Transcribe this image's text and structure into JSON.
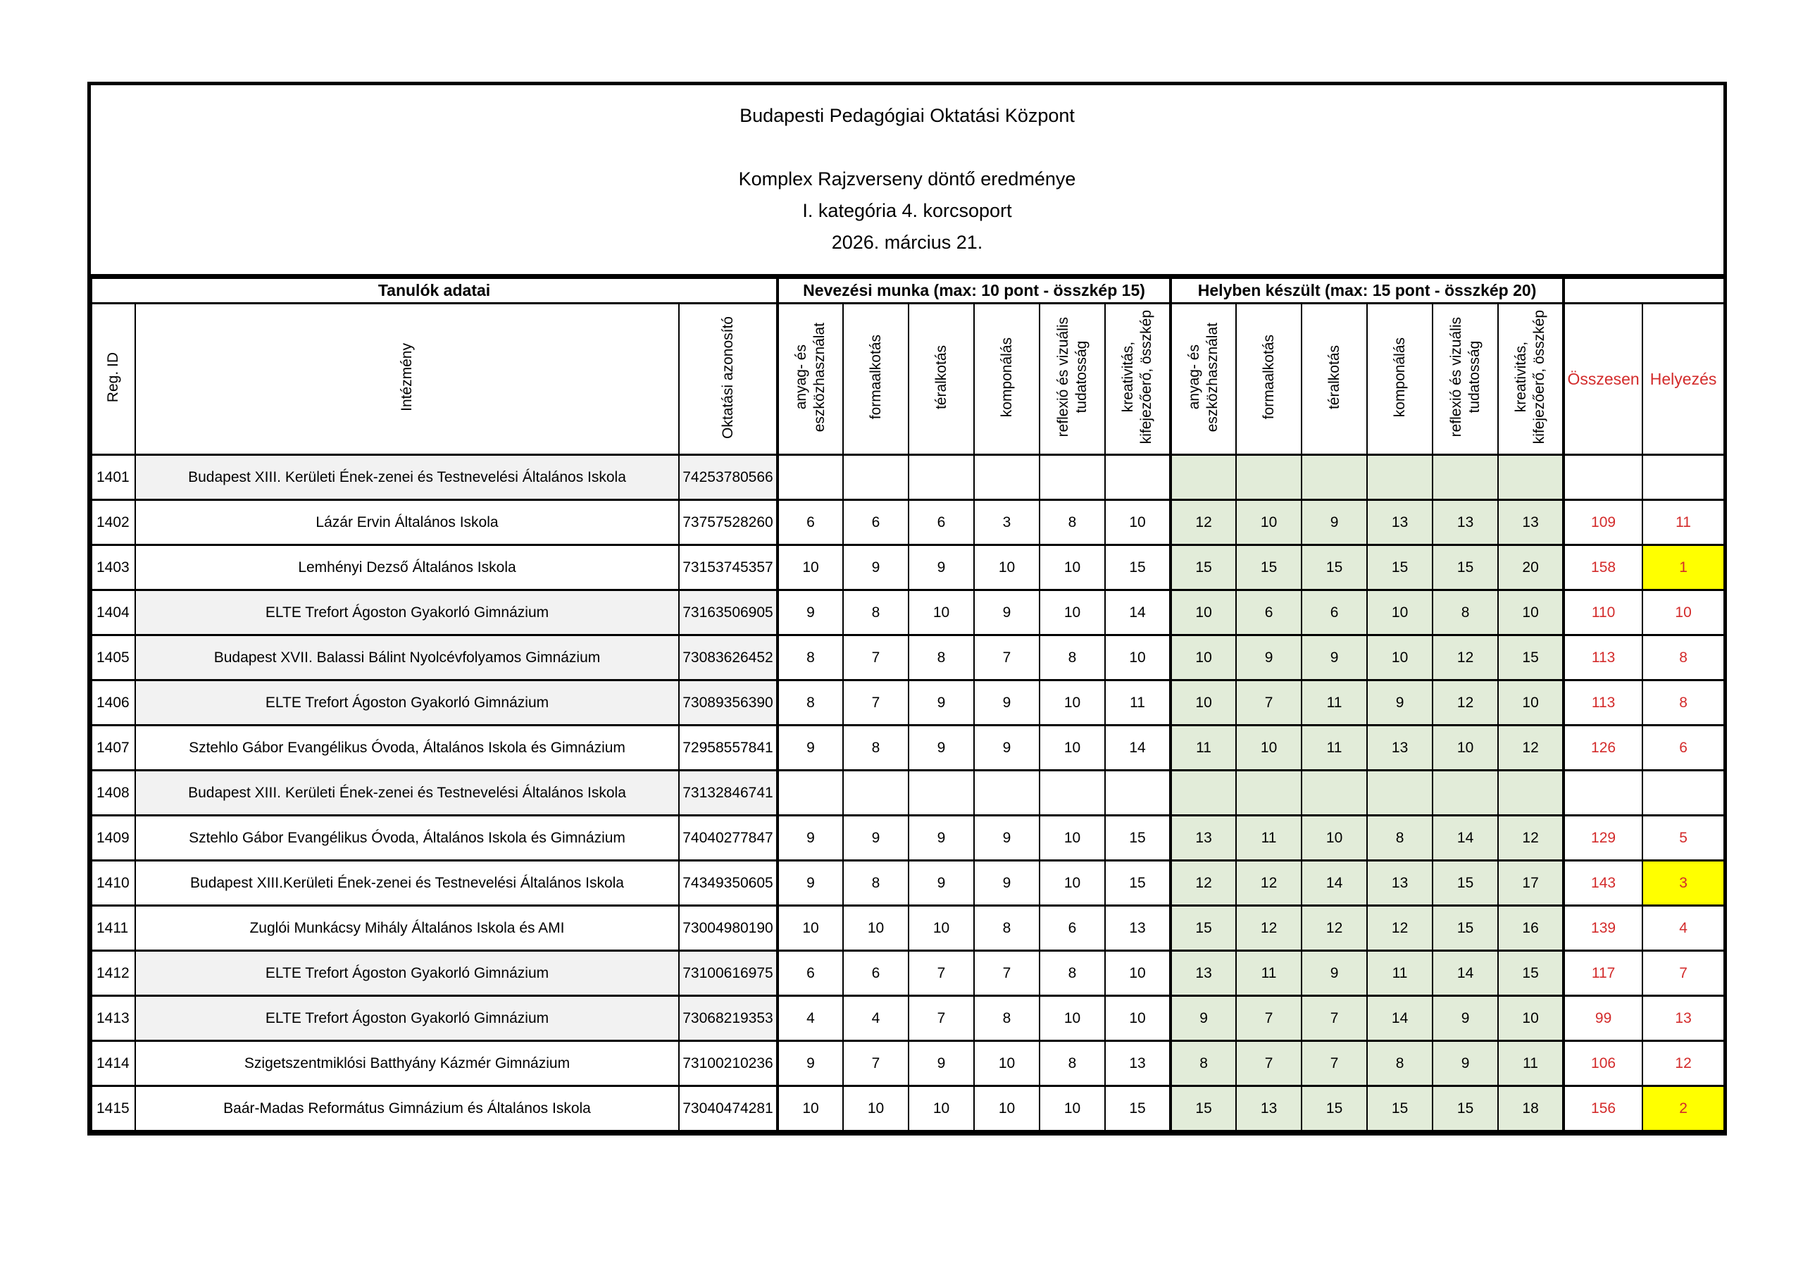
{
  "header": {
    "organization": "Budapesti Pedagógiai Oktatási Központ",
    "competition": "Komplex Rajzverseny döntő eredménye",
    "category": "I. kategória 4. korcsoport",
    "date": "2026. március 21."
  },
  "table": {
    "groups": {
      "students": "Tanulók adatai",
      "entry": "Nevezési munka (max: 10 pont - összkép 15)",
      "onsite": "Helyben készült (max: 15 pont - összkép 20)"
    },
    "columns": {
      "reg_id": "Reg. ID",
      "institution": "Intézmény",
      "education_id": "Oktatási azonosító",
      "criteria": [
        "anyag- és\neszközhasználat",
        "formaalkotás",
        "téralkotás",
        "komponálás",
        "reflexió és vizuális\ntudatosság",
        "kreativitás,\nkifejezőerő, összkép"
      ],
      "total": "Összesen",
      "rank": "Helyezés"
    },
    "rows": [
      {
        "reg": "1401",
        "inst": "Budapest XIII. Kerületi Ének-zenei és Testnevelési Általános Iskola",
        "oid": "74253780566",
        "entry": [
          "",
          "",
          "",
          "",
          "",
          ""
        ],
        "onsite": [
          "",
          "",
          "",
          "",
          "",
          ""
        ],
        "total": "",
        "rank": "",
        "hl": false,
        "shade": true
      },
      {
        "reg": "1402",
        "inst": "Lázár Ervin Általános Iskola",
        "oid": "73757528260",
        "entry": [
          "6",
          "6",
          "6",
          "3",
          "8",
          "10"
        ],
        "onsite": [
          "12",
          "10",
          "9",
          "13",
          "13",
          "13"
        ],
        "total": "109",
        "rank": "11",
        "hl": false,
        "shade": false
      },
      {
        "reg": "1403",
        "inst": "Lemhényi Dezső Általános Iskola",
        "oid": "73153745357",
        "entry": [
          "10",
          "9",
          "9",
          "10",
          "10",
          "15"
        ],
        "onsite": [
          "15",
          "15",
          "15",
          "15",
          "15",
          "20"
        ],
        "total": "158",
        "rank": "1",
        "hl": true,
        "shade": false
      },
      {
        "reg": "1404",
        "inst": "ELTE Trefort Ágoston Gyakorló Gimnázium",
        "oid": "73163506905",
        "entry": [
          "9",
          "8",
          "10",
          "9",
          "10",
          "14"
        ],
        "onsite": [
          "10",
          "6",
          "6",
          "10",
          "8",
          "10"
        ],
        "total": "110",
        "rank": "10",
        "hl": false,
        "shade": true
      },
      {
        "reg": "1405",
        "inst": "Budapest XVII. Balassi Bálint Nyolcévfolyamos Gimnázium",
        "oid": "73083626452",
        "entry": [
          "8",
          "7",
          "8",
          "7",
          "8",
          "10"
        ],
        "onsite": [
          "10",
          "9",
          "9",
          "10",
          "12",
          "15"
        ],
        "total": "113",
        "rank": "8",
        "hl": false,
        "shade": true
      },
      {
        "reg": "1406",
        "inst": "ELTE Trefort Ágoston Gyakorló Gimnázium",
        "oid": "73089356390",
        "entry": [
          "8",
          "7",
          "9",
          "9",
          "10",
          "11"
        ],
        "onsite": [
          "10",
          "7",
          "11",
          "9",
          "12",
          "10"
        ],
        "total": "113",
        "rank": "8",
        "hl": false,
        "shade": true
      },
      {
        "reg": "1407",
        "inst": "Sztehlo Gábor Evangélikus Óvoda, Általános Iskola és Gimnázium",
        "oid": "72958557841",
        "entry": [
          "9",
          "8",
          "9",
          "9",
          "10",
          "14"
        ],
        "onsite": [
          "11",
          "10",
          "11",
          "13",
          "10",
          "12"
        ],
        "total": "126",
        "rank": "6",
        "hl": false,
        "shade": false
      },
      {
        "reg": "1408",
        "inst": "Budapest XIII. Kerületi Ének-zenei és Testnevelési Általános Iskola",
        "oid": "73132846741",
        "entry": [
          "",
          "",
          "",
          "",
          "",
          ""
        ],
        "onsite": [
          "",
          "",
          "",
          "",
          "",
          ""
        ],
        "total": "",
        "rank": "",
        "hl": false,
        "shade": true
      },
      {
        "reg": "1409",
        "inst": "Sztehlo Gábor Evangélikus Óvoda, Általános Iskola és Gimnázium",
        "oid": "74040277847",
        "entry": [
          "9",
          "9",
          "9",
          "9",
          "10",
          "15"
        ],
        "onsite": [
          "13",
          "11",
          "10",
          "8",
          "14",
          "12"
        ],
        "total": "129",
        "rank": "5",
        "hl": false,
        "shade": false
      },
      {
        "reg": "1410",
        "inst": "Budapest XIII.Kerületi Ének-zenei és Testnevelési Általános Iskola",
        "oid": "74349350605",
        "entry": [
          "9",
          "8",
          "9",
          "9",
          "10",
          "15"
        ],
        "onsite": [
          "12",
          "12",
          "14",
          "13",
          "15",
          "17"
        ],
        "total": "143",
        "rank": "3",
        "hl": true,
        "shade": false
      },
      {
        "reg": "1411",
        "inst": "Zuglói Munkácsy Mihály Általános Iskola és AMI",
        "oid": "73004980190",
        "entry": [
          "10",
          "10",
          "10",
          "8",
          "6",
          "13"
        ],
        "onsite": [
          "15",
          "12",
          "12",
          "12",
          "15",
          "16"
        ],
        "total": "139",
        "rank": "4",
        "hl": false,
        "shade": false
      },
      {
        "reg": "1412",
        "inst": "ELTE Trefort Ágoston Gyakorló Gimnázium",
        "oid": "73100616975",
        "entry": [
          "6",
          "6",
          "7",
          "7",
          "8",
          "10"
        ],
        "onsite": [
          "13",
          "11",
          "9",
          "11",
          "14",
          "15"
        ],
        "total": "117",
        "rank": "7",
        "hl": false,
        "shade": true
      },
      {
        "reg": "1413",
        "inst": "ELTE Trefort Ágoston Gyakorló Gimnázium",
        "oid": "73068219353",
        "entry": [
          "4",
          "4",
          "7",
          "8",
          "10",
          "10"
        ],
        "onsite": [
          "9",
          "7",
          "7",
          "14",
          "9",
          "10"
        ],
        "total": "99",
        "rank": "13",
        "hl": false,
        "shade": true
      },
      {
        "reg": "1414",
        "inst": "Szigetszentmiklósi Batthyány Kázmér Gimnázium",
        "oid": "73100210236",
        "entry": [
          "9",
          "7",
          "9",
          "10",
          "8",
          "13"
        ],
        "onsite": [
          "8",
          "7",
          "7",
          "8",
          "9",
          "11"
        ],
        "total": "106",
        "rank": "12",
        "hl": false,
        "shade": false
      },
      {
        "reg": "1415",
        "inst": "Baár-Madas Református Gimnázium és Általános Iskola",
        "oid": "73040474281",
        "entry": [
          "10",
          "10",
          "10",
          "10",
          "10",
          "15"
        ],
        "onsite": [
          "15",
          "13",
          "15",
          "15",
          "15",
          "18"
        ],
        "total": "156",
        "rank": "2",
        "hl": true,
        "shade": false
      }
    ]
  },
  "colors": {
    "red_text": "#d32b2b",
    "onsite_fill": "#e2ecd9",
    "rank_highlight": "#ffff00",
    "row_shade": "#f2f2f2"
  }
}
